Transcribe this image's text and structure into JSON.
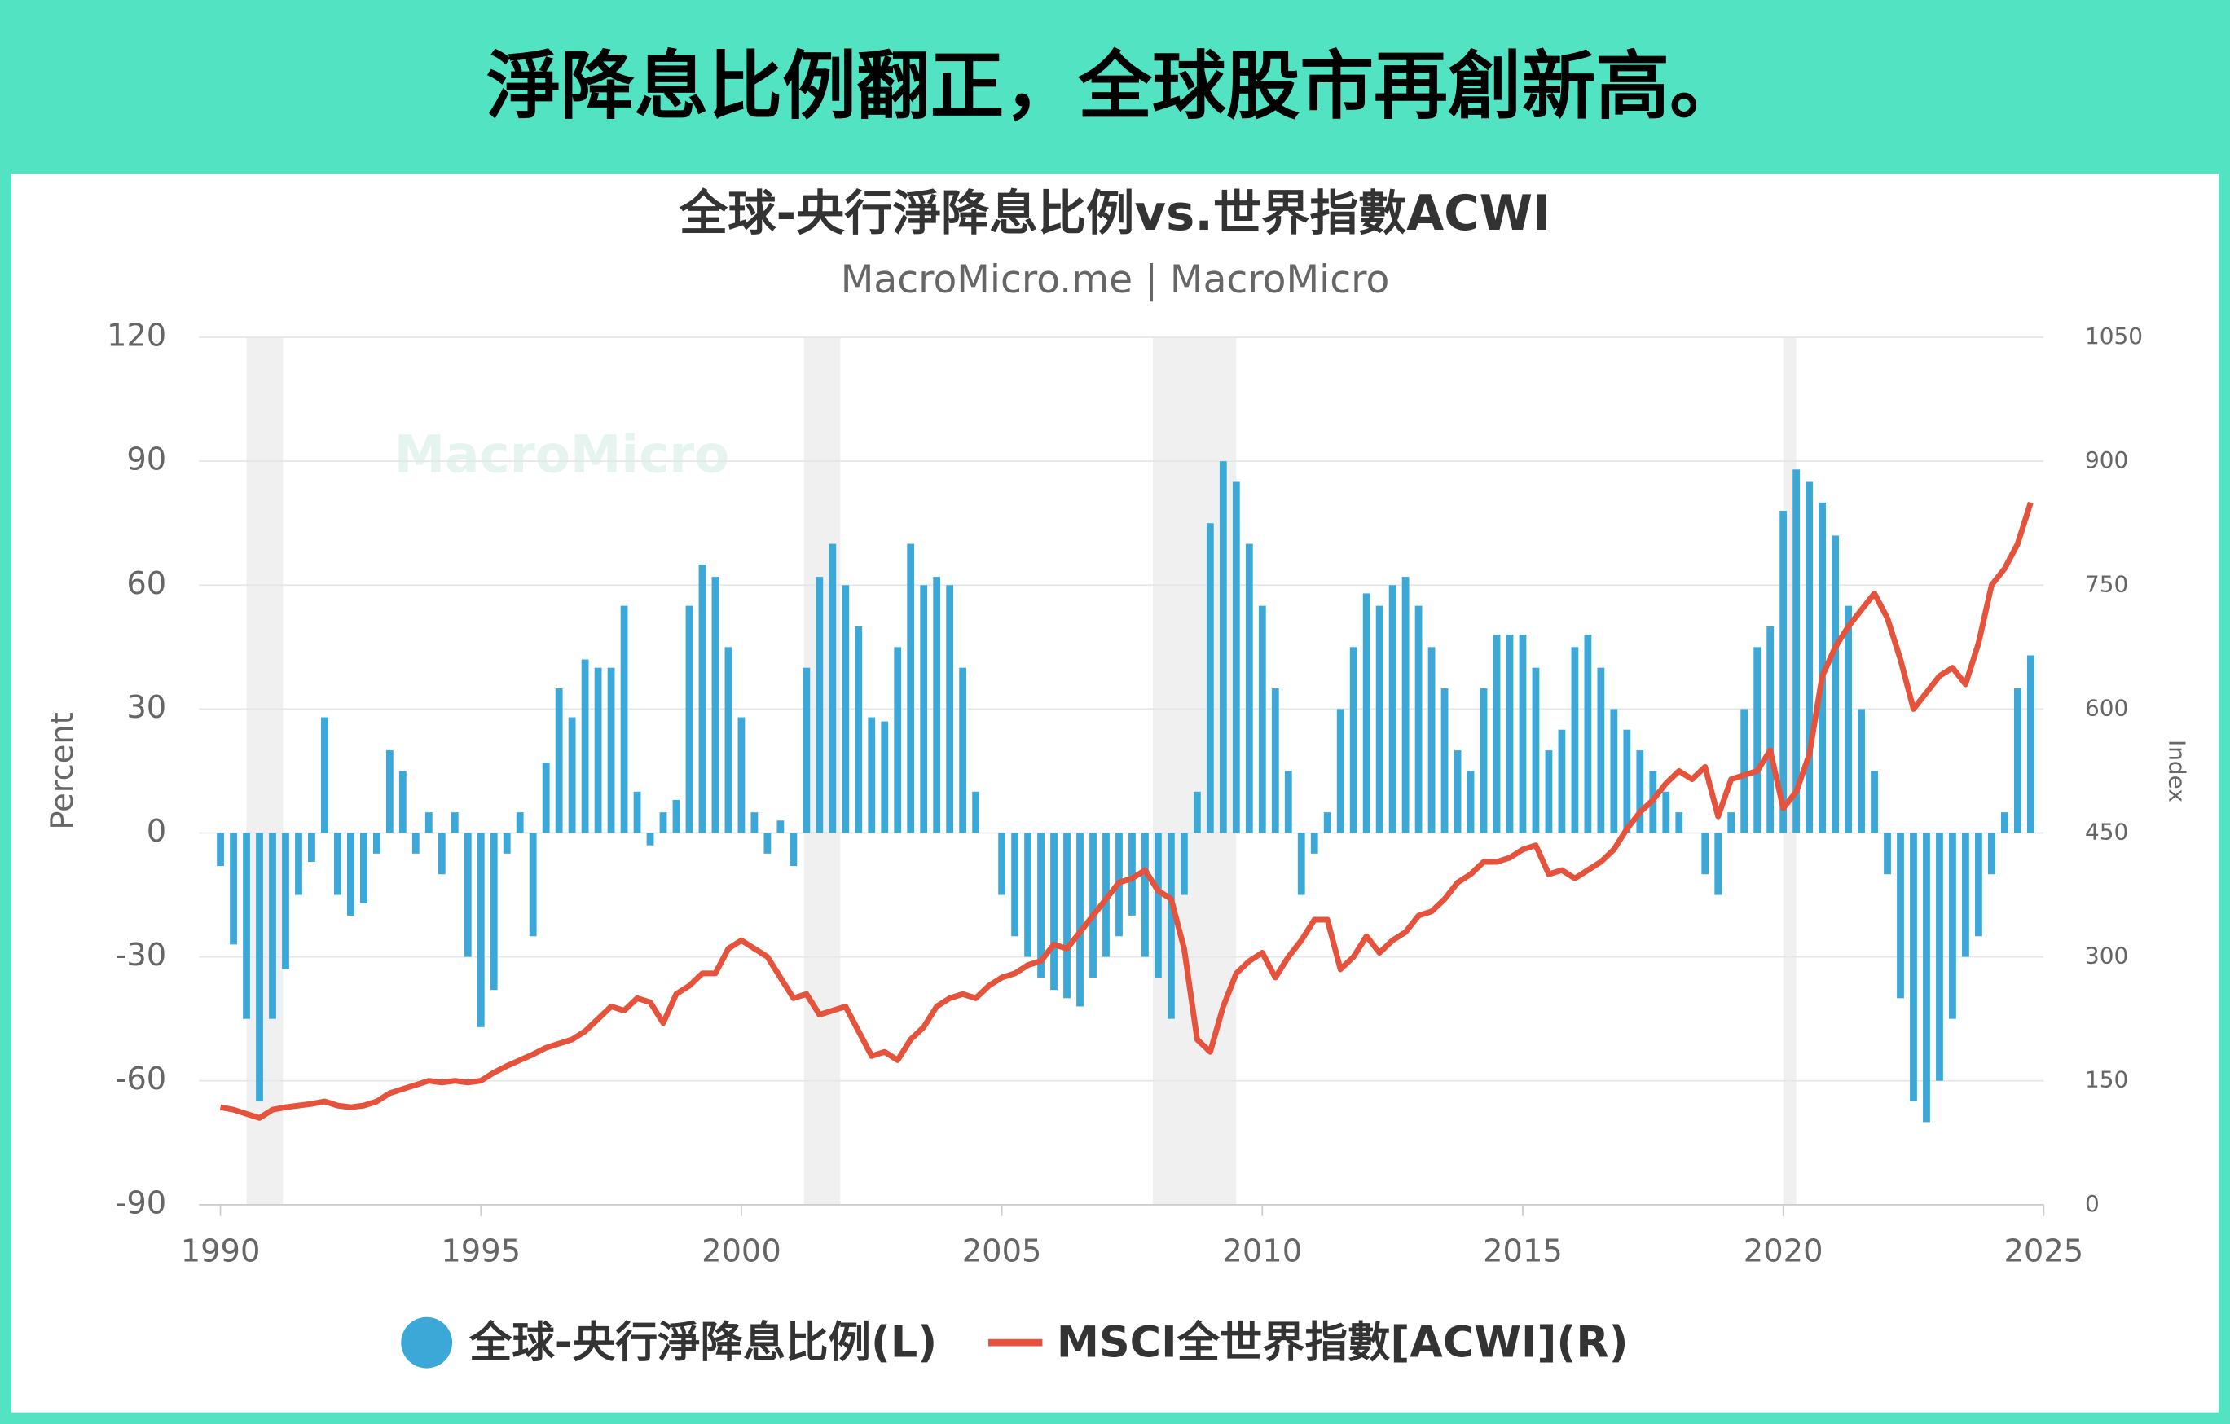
{
  "header": {
    "title": "淨降息比例翻正，全球股市再創新高。"
  },
  "chart_data": {
    "type": "bar-line",
    "title": "全球-央行淨降息比例vs.世界指數ACWI",
    "subtitle": "MacroMicro.me | MacroMicro",
    "watermark": "MacroMicro",
    "ylabel": "Percent",
    "y2label": "Index",
    "xlim": [
      1990,
      2025
    ],
    "xticks": [
      1990,
      1995,
      2000,
      2005,
      2010,
      2015,
      2020,
      2025
    ],
    "ylim": [
      -90,
      120
    ],
    "yticks": [
      -90,
      -60,
      -30,
      0,
      30,
      60,
      90,
      120
    ],
    "y2lim": [
      0,
      1050
    ],
    "y2ticks": [
      0,
      150,
      300,
      450,
      600,
      750,
      900,
      1050
    ],
    "grid": true,
    "shaded_periods": [
      [
        1990.5,
        1991.2
      ],
      [
        2001.2,
        2001.9
      ],
      [
        2007.9,
        2009.5
      ],
      [
        2020.0,
        2020.25
      ]
    ],
    "x": [
      1990,
      1990.25,
      1990.5,
      1990.75,
      1991,
      1991.25,
      1991.5,
      1991.75,
      1992,
      1992.25,
      1992.5,
      1992.75,
      1993,
      1993.25,
      1993.5,
      1993.75,
      1994,
      1994.25,
      1994.5,
      1994.75,
      1995,
      1995.25,
      1995.5,
      1995.75,
      1996,
      1996.25,
      1996.5,
      1996.75,
      1997,
      1997.25,
      1997.5,
      1997.75,
      1998,
      1998.25,
      1998.5,
      1998.75,
      1999,
      1999.25,
      1999.5,
      1999.75,
      2000,
      2000.25,
      2000.5,
      2000.75,
      2001,
      2001.25,
      2001.5,
      2001.75,
      2002,
      2002.25,
      2002.5,
      2002.75,
      2003,
      2003.25,
      2003.5,
      2003.75,
      2004,
      2004.25,
      2004.5,
      2004.75,
      2005,
      2005.25,
      2005.5,
      2005.75,
      2006,
      2006.25,
      2006.5,
      2006.75,
      2007,
      2007.25,
      2007.5,
      2007.75,
      2008,
      2008.25,
      2008.5,
      2008.75,
      2009,
      2009.25,
      2009.5,
      2009.75,
      2010,
      2010.25,
      2010.5,
      2010.75,
      2011,
      2011.25,
      2011.5,
      2011.75,
      2012,
      2012.25,
      2012.5,
      2012.75,
      2013,
      2013.25,
      2013.5,
      2013.75,
      2014,
      2014.25,
      2014.5,
      2014.75,
      2015,
      2015.25,
      2015.5,
      2015.75,
      2016,
      2016.25,
      2016.5,
      2016.75,
      2017,
      2017.25,
      2017.5,
      2017.75,
      2018,
      2018.25,
      2018.5,
      2018.75,
      2019,
      2019.25,
      2019.5,
      2019.75,
      2020,
      2020.25,
      2020.5,
      2020.75,
      2021,
      2021.25,
      2021.5,
      2021.75,
      2022,
      2022.25,
      2022.5,
      2022.75,
      2023,
      2023.25,
      2023.5,
      2023.75,
      2024,
      2024.25,
      2024.5,
      2024.75
    ],
    "series": [
      {
        "name": "全球-央行淨降息比例(L)",
        "type": "bar",
        "axis": "y",
        "color": "#3ba8d8",
        "values": [
          -8,
          -27,
          -45,
          -65,
          -45,
          -33,
          -15,
          -7,
          28,
          -15,
          -20,
          -17,
          -5,
          20,
          15,
          -5,
          5,
          -10,
          5,
          -30,
          -47,
          -38,
          -5,
          5,
          -25,
          17,
          35,
          28,
          42,
          40,
          40,
          55,
          10,
          -3,
          5,
          8,
          55,
          65,
          62,
          45,
          28,
          5,
          -5,
          3,
          -8,
          40,
          62,
          70,
          60,
          50,
          28,
          27,
          45,
          70,
          60,
          62,
          60,
          40,
          10,
          0,
          -15,
          -25,
          -30,
          -35,
          -38,
          -40,
          -42,
          -35,
          -30,
          -25,
          -20,
          -30,
          -35,
          -45,
          -15,
          10,
          75,
          90,
          85,
          70,
          55,
          35,
          15,
          -15,
          -5,
          5,
          30,
          45,
          58,
          55,
          60,
          62,
          55,
          45,
          35,
          20,
          15,
          35,
          48,
          48,
          48,
          40,
          20,
          25,
          45,
          48,
          40,
          30,
          25,
          20,
          15,
          10,
          5,
          0,
          -10,
          -15,
          5,
          30,
          45,
          50,
          78,
          88,
          85,
          80,
          72,
          55,
          30,
          15,
          -10,
          -40,
          -65,
          -70,
          -60,
          -45,
          -30,
          -25,
          -10,
          5,
          35,
          43
        ]
      },
      {
        "name": "MSCI全世界指數[ACWI](R)",
        "type": "line",
        "axis": "y2",
        "color": "#e5533c",
        "values": [
          118,
          115,
          110,
          105,
          115,
          118,
          120,
          122,
          125,
          120,
          118,
          120,
          125,
          135,
          140,
          145,
          150,
          148,
          150,
          148,
          150,
          160,
          168,
          175,
          182,
          190,
          195,
          200,
          210,
          225,
          240,
          235,
          250,
          245,
          220,
          255,
          265,
          280,
          280,
          310,
          320,
          310,
          300,
          275,
          250,
          255,
          230,
          235,
          240,
          210,
          180,
          185,
          175,
          200,
          215,
          240,
          250,
          255,
          250,
          265,
          275,
          280,
          290,
          295,
          315,
          310,
          330,
          350,
          370,
          390,
          395,
          405,
          380,
          370,
          310,
          200,
          185,
          240,
          280,
          295,
          305,
          275,
          300,
          320,
          345,
          345,
          285,
          300,
          325,
          305,
          320,
          330,
          350,
          355,
          370,
          390,
          400,
          415,
          415,
          420,
          430,
          435,
          400,
          405,
          395,
          405,
          415,
          430,
          455,
          475,
          490,
          510,
          525,
          515,
          530,
          470,
          515,
          520,
          525,
          550,
          480,
          500,
          545,
          640,
          675,
          700,
          720,
          740,
          710,
          660,
          600,
          620,
          640,
          650,
          630,
          680,
          750,
          770,
          800,
          850
        ]
      }
    ]
  }
}
